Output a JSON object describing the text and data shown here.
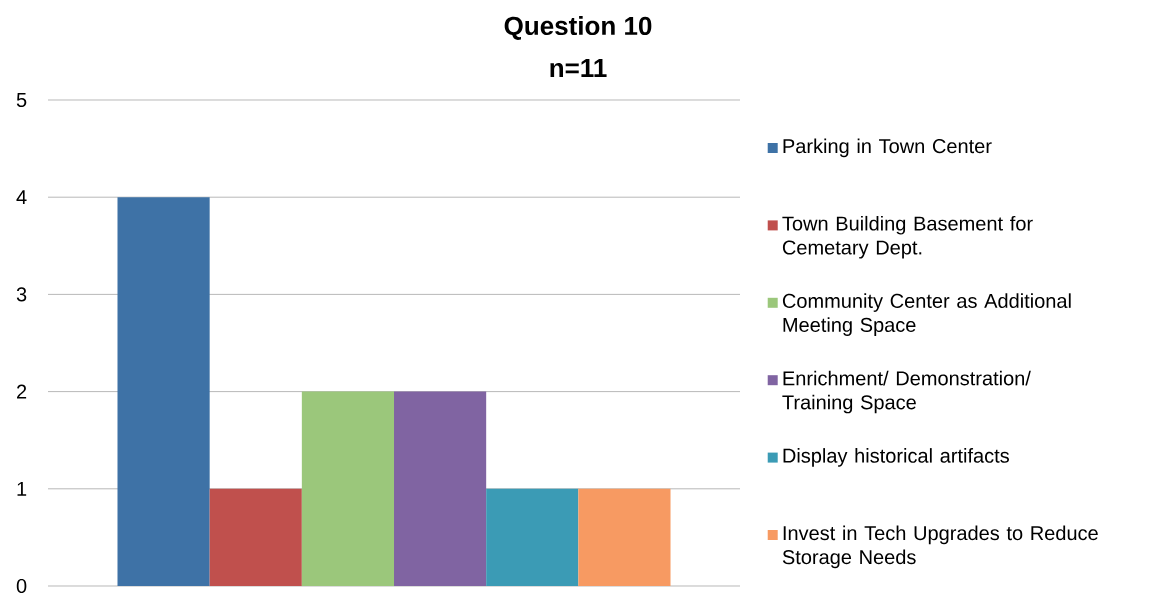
{
  "chart_data": {
    "type": "bar",
    "title": "Question 10",
    "subtitle": "n=11",
    "categories": [
      null
    ],
    "series": [
      {
        "name": "Parking in Town Center",
        "color": "#3e72a6",
        "values": [
          4
        ]
      },
      {
        "name": "Town Building Basement for Cemetary Dept.",
        "color": "#c0504d",
        "values": [
          1
        ]
      },
      {
        "name": "Community Center as Additional Meeting Space",
        "color": "#9bc77b",
        "values": [
          2
        ]
      },
      {
        "name": "Enrichment/ Demonstration/ Training Space",
        "color": "#8064a2",
        "values": [
          2
        ]
      },
      {
        "name": "Display historical artifacts",
        "color": "#3b9bb5",
        "values": [
          1
        ]
      },
      {
        "name": "Invest in Tech Upgrades to Reduce Storage Needs",
        "color": "#f79a62",
        "values": [
          1
        ]
      }
    ],
    "ylim": [
      0,
      5
    ],
    "yticks": [
      0,
      1,
      2,
      3,
      4,
      5
    ],
    "grid": "y",
    "legend": "right"
  }
}
